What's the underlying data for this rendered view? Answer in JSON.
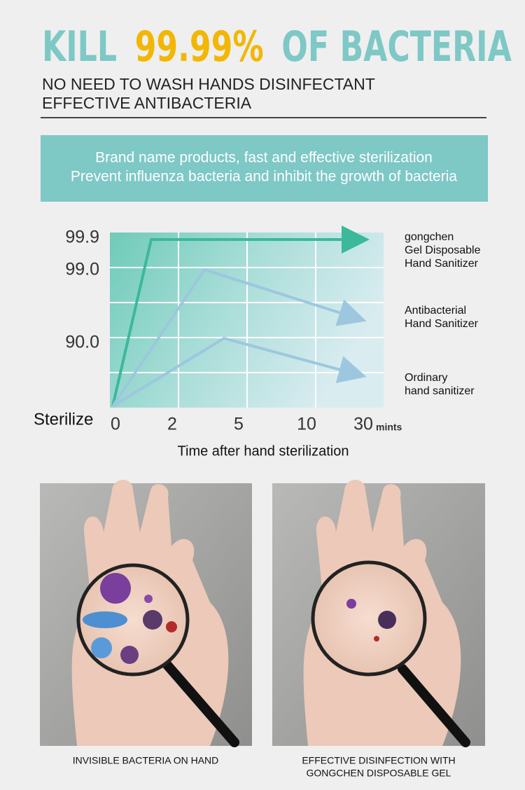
{
  "header": {
    "title": {
      "lead": "KILL",
      "highlight": "99.99%",
      "tail": "OF BACTERIA"
    },
    "subtitle": [
      "NO NEED TO WASH HANDS DISINFECTANT",
      "EFFECTIVE ANTIBACTERIA"
    ]
  },
  "banner": [
    "Brand name products, fast and effective sterilization",
    "Prevent influenza bacteria and inhibit the growth of bacteria"
  ],
  "diagram": {
    "y_labels": [
      "99.9",
      "99.0",
      "90.0"
    ],
    "origin_label": "Sterilize",
    "x_labels": [
      "0",
      "2",
      "5",
      "10",
      "30"
    ],
    "x_unit": "mints",
    "x_title": "Time after hand sterilization",
    "legend": [
      [
        "gongchen",
        "Gel Disposable",
        "Hand  Sanitizer"
      ],
      [
        "Antibacterial",
        "Hand Sanitizer"
      ],
      [
        "Ordinary",
        "hand sanitizer"
      ]
    ]
  },
  "photos": [
    {
      "caption": [
        "INVISIBLE BACTERIA ON HAND"
      ]
    },
    {
      "caption": [
        "EFFECTIVE DISINFECTION WITH",
        "GONGCHEN DISPOSABLE GEL"
      ]
    }
  ]
}
